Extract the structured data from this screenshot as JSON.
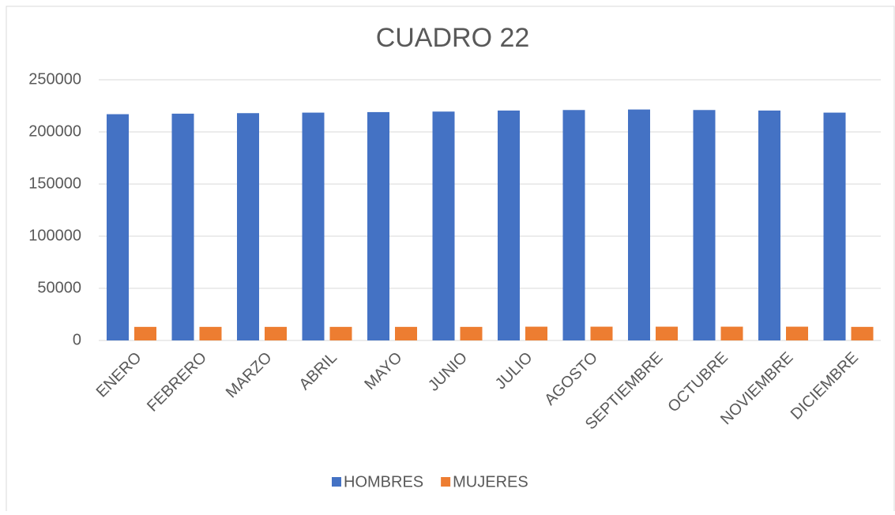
{
  "chart_data": {
    "type": "bar",
    "title": "CUADRO  22",
    "categories": [
      "ENERO",
      "FEBRERO",
      "MARZO",
      "ABRIL",
      "MAYO",
      "JUNIO",
      "JULIO",
      "AGOSTO",
      "SEPTIEMBRE",
      "OCTUBRE",
      "NOVIEMBRE",
      "DICIEMBRE"
    ],
    "series": [
      {
        "name": "HOMBRES",
        "color": "#4472c4",
        "values": [
          217000,
          217500,
          218000,
          218500,
          219000,
          219500,
          220500,
          221000,
          221500,
          221000,
          220500,
          218500
        ]
      },
      {
        "name": "MUJERES",
        "color": "#ed7d31",
        "values": [
          13000,
          13000,
          13000,
          13000,
          13000,
          13000,
          13200,
          13200,
          13200,
          13200,
          13200,
          13000
        ]
      }
    ],
    "ylim": [
      0,
      250000
    ],
    "yticks": [
      0,
      50000,
      100000,
      150000,
      200000,
      250000
    ],
    "grid": true,
    "legend": "bottom"
  }
}
